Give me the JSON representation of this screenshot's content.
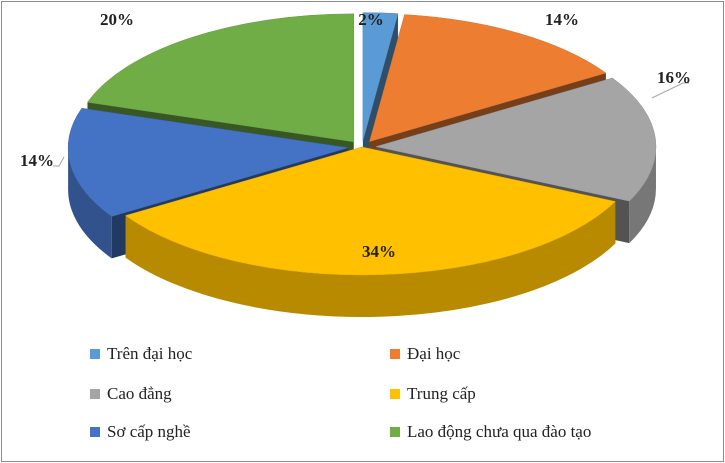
{
  "chart_data": {
    "type": "pie",
    "three_d": true,
    "exploded": true,
    "title": "",
    "categories": [
      "Trên đại học",
      "Đại học",
      "Cao đẳng",
      "Trung cấp",
      "Sơ cấp nghề",
      "Lao động chưa qua đào tạo"
    ],
    "values": [
      2,
      14,
      16,
      34,
      14,
      20
    ],
    "labels": [
      "2%",
      "14%",
      "16%",
      "34%",
      "14%",
      "20%"
    ],
    "colors": [
      "#5b9bd5",
      "#ed7d31",
      "#a5a5a5",
      "#ffc000",
      "#4472c4",
      "#70ad47"
    ],
    "legend": {
      "position": "bottom",
      "entries": [
        "Trên đại học",
        "Đại học",
        "Cao đẳng",
        "Trung cấp",
        "Sơ cấp nghề",
        "Lao động chưa qua đào tạo"
      ]
    }
  }
}
